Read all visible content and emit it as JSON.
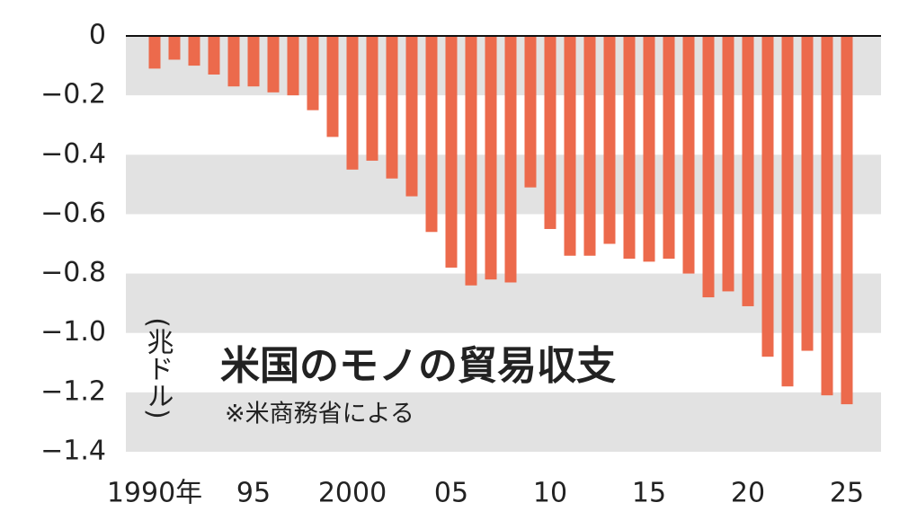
{
  "chart_data": {
    "type": "bar",
    "title": "米国のモノの貿易収支",
    "subtitle": "※米商務省による",
    "y_axis_label": "(兆ドル)",
    "categories": [
      "1990年",
      null,
      null,
      null,
      null,
      "95",
      null,
      null,
      null,
      null,
      "2000",
      null,
      null,
      null,
      null,
      "05",
      null,
      null,
      null,
      null,
      "10",
      null,
      null,
      null,
      null,
      "15",
      null,
      null,
      null,
      null,
      "20",
      null,
      null,
      null,
      null,
      "25"
    ],
    "values": [
      -0.11,
      -0.08,
      -0.1,
      -0.13,
      -0.17,
      -0.17,
      -0.19,
      -0.2,
      -0.25,
      -0.34,
      -0.45,
      -0.42,
      -0.48,
      -0.54,
      -0.66,
      -0.78,
      -0.84,
      -0.82,
      -0.83,
      -0.51,
      -0.65,
      -0.74,
      -0.74,
      -0.7,
      -0.75,
      -0.76,
      -0.75,
      -0.8,
      -0.88,
      -0.86,
      -0.91,
      -1.08,
      -1.18,
      -1.06,
      -1.21,
      -1.24
    ],
    "color": "#ec6a4c",
    "band_color": "#e2e2e2",
    "ylim": [
      -1.4,
      0
    ],
    "yticks": [
      0,
      {
        "value": -0.2,
        "label": "−0.2"
      },
      {
        "value": -0.4,
        "label": "−0.4"
      },
      {
        "value": -0.6,
        "label": "−0.6"
      },
      {
        "value": -0.8,
        "label": "−0.8"
      },
      {
        "value": -1.0,
        "label": "−1.0"
      },
      {
        "value": -1.2,
        "label": "−1.2"
      },
      {
        "value": -1.4,
        "label": "−1.4"
      }
    ]
  }
}
